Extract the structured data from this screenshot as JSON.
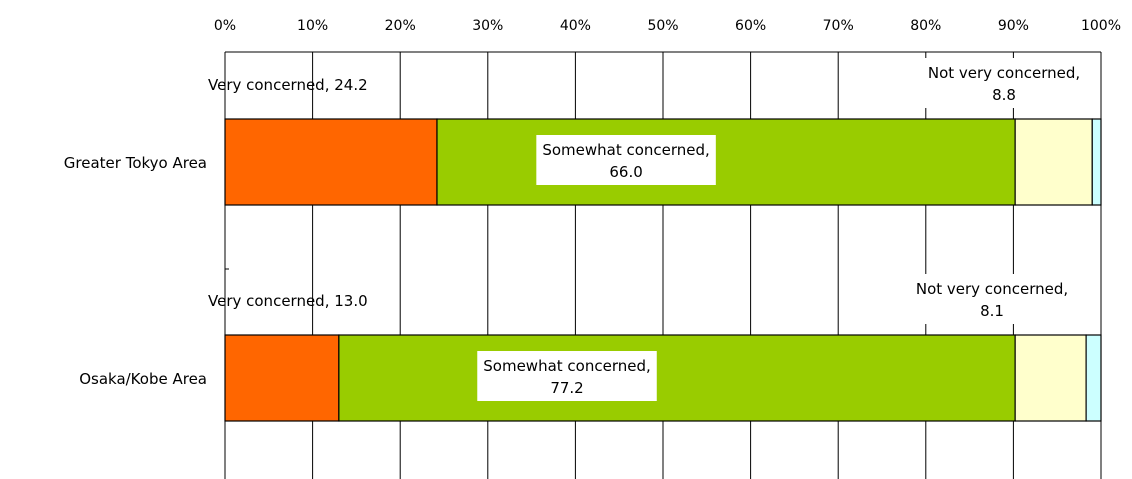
{
  "chart_data": {
    "type": "bar",
    "orientation": "horizontal",
    "stacked": true,
    "percent_scale": true,
    "categories": [
      "Greater Tokyo Area",
      "Osaka/Kobe Area"
    ],
    "series": [
      {
        "name": "Very concerned",
        "color": "#FF6600",
        "values": [
          24.2,
          13.0
        ]
      },
      {
        "name": "Somewhat concerned",
        "color": "#99CC00",
        "values": [
          66.0,
          77.2
        ]
      },
      {
        "name": "Not very concerned",
        "color": "#FFFFCC",
        "values": [
          8.8,
          8.1
        ]
      },
      {
        "name": "",
        "color": "#CCFFFF",
        "values": [
          1.0,
          1.7
        ]
      }
    ],
    "xlim": [
      0,
      100
    ],
    "x_ticks": [
      "0%",
      "10%",
      "20%",
      "30%",
      "40%",
      "50%",
      "60%",
      "70%",
      "80%",
      "90%",
      "100%"
    ],
    "grid": true,
    "x_axis_position": "top",
    "legend": "none",
    "data_labels": [
      [
        "Very concerned, 24.2",
        "Somewhat concerned,\n66.0",
        "Not very concerned,\n8.8"
      ],
      [
        "Very concerned, 13.0",
        "Somewhat concerned,\n77.2",
        "Not very concerned,\n8.1"
      ]
    ]
  }
}
